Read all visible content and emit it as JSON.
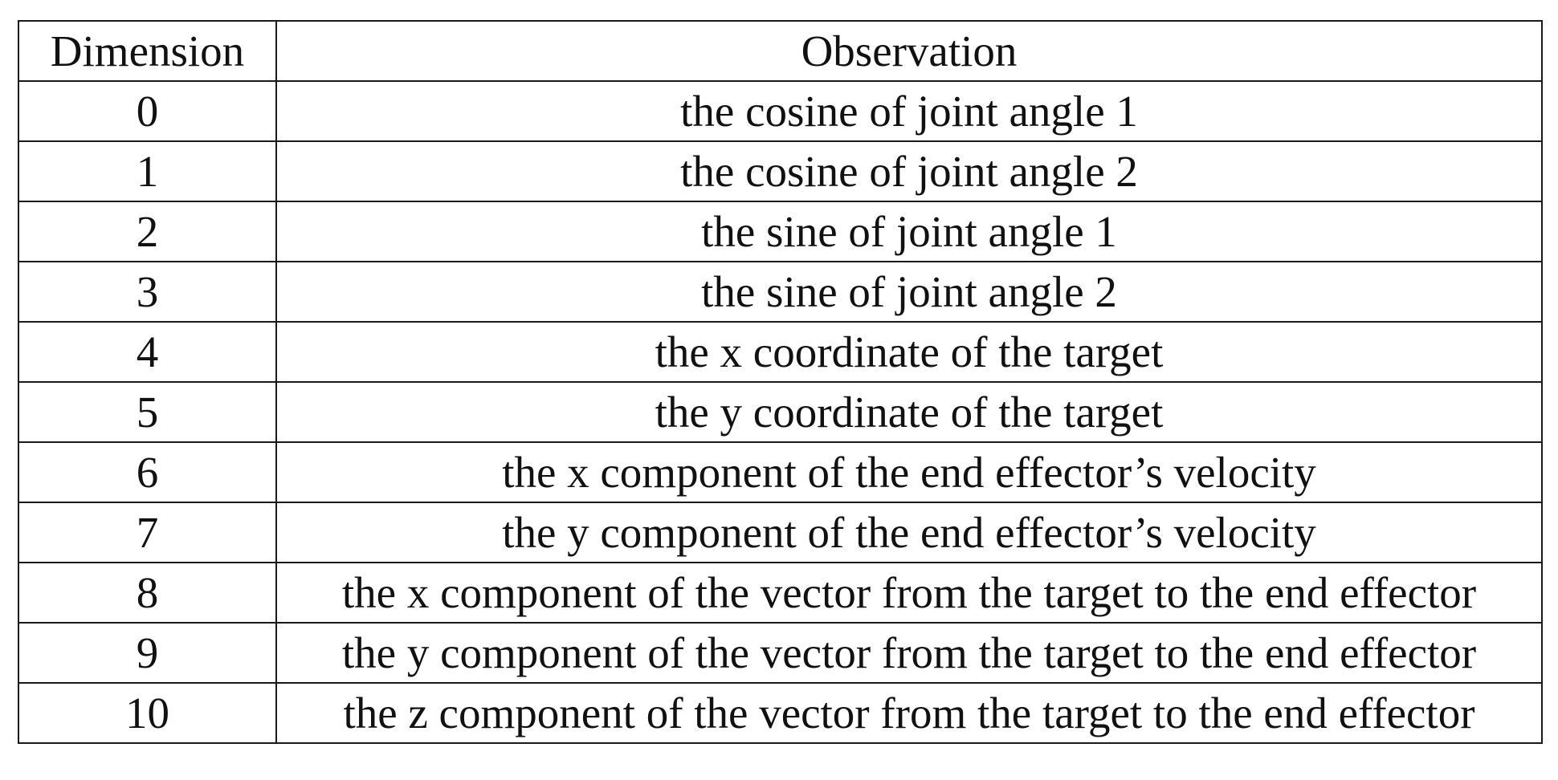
{
  "table": {
    "headers": {
      "dimension": "Dimension",
      "observation": "Observation"
    },
    "rows": [
      {
        "dimension": "0",
        "observation": "the cosine of joint angle 1"
      },
      {
        "dimension": "1",
        "observation": "the cosine of joint angle 2"
      },
      {
        "dimension": "2",
        "observation": "the sine of joint angle 1"
      },
      {
        "dimension": "3",
        "observation": "the sine of joint angle 2"
      },
      {
        "dimension": "4",
        "observation": "the x coordinate of the target"
      },
      {
        "dimension": "5",
        "observation": "the y coordinate of the target"
      },
      {
        "dimension": "6",
        "observation": "the x component of the end effector’s velocity"
      },
      {
        "dimension": "7",
        "observation": "the y component of the end effector’s velocity"
      },
      {
        "dimension": "8",
        "observation": "the x component of the vector from the target to the end effector"
      },
      {
        "dimension": "9",
        "observation": "the y component of the vector from the target to the end effector"
      },
      {
        "dimension": "10",
        "observation": "the z component of the vector from the target to the end effector"
      }
    ]
  }
}
